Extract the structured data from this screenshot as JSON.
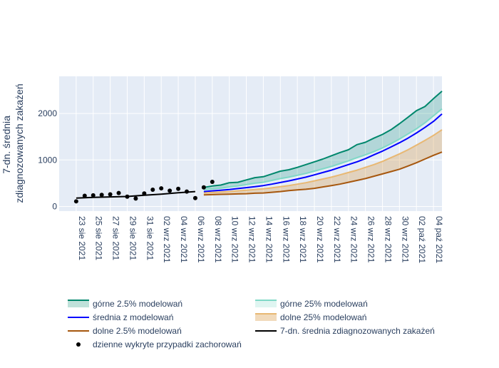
{
  "chart_data": {
    "type": "line",
    "ylabel": "7-dn. średnia zdiagnozowanych zakażeń",
    "ylabel_lines": [
      "7-dn. średnia",
      "zdiagnozowanych zakażeń"
    ],
    "ylim": [
      -100,
      2800
    ],
    "yticks": [
      0,
      1000,
      2000
    ],
    "yticklabels": [
      "0",
      "1000",
      "2000"
    ],
    "xlim": [
      "2021-08-21",
      "2021-10-05"
    ],
    "xtick_dates": [
      "2021-08-23",
      "2021-08-25",
      "2021-08-27",
      "2021-08-29",
      "2021-08-31",
      "2021-09-02",
      "2021-09-04",
      "2021-09-06",
      "2021-09-08",
      "2021-09-10",
      "2021-09-12",
      "2021-09-14",
      "2021-09-16",
      "2021-09-18",
      "2021-09-20",
      "2021-09-22",
      "2021-09-24",
      "2021-09-26",
      "2021-09-28",
      "2021-09-30",
      "2021-10-02",
      "2021-10-04"
    ],
    "xticklabels": [
      "23 sie 2021",
      "25 sie 2021",
      "27 sie 2021",
      "29 sie 2021",
      "31 sie 2021",
      "02 wrz 2021",
      "04 wrz 2021",
      "06 wrz 2021",
      "08 wrz 2021",
      "10 wrz 2021",
      "12 wrz 2021",
      "14 wrz 2021",
      "16 wrz 2021",
      "18 wrz 2021",
      "20 wrz 2021",
      "22 wrz 2021",
      "24 wrz 2021",
      "26 wrz 2021",
      "28 wrz 2021",
      "30 wrz 2021",
      "02 paź 2021",
      "04 paź 2021"
    ],
    "grid": true,
    "legend_position": "bottom",
    "series": [
      {
        "name": "górne 2.5% modelowań",
        "color": "#00876c",
        "x": [
          "2021-09-07",
          "2021-09-08",
          "2021-09-09",
          "2021-09-10",
          "2021-09-11",
          "2021-09-12",
          "2021-09-13",
          "2021-09-14",
          "2021-09-15",
          "2021-09-16",
          "2021-09-17",
          "2021-09-18",
          "2021-09-19",
          "2021-09-20",
          "2021-09-21",
          "2021-09-22",
          "2021-09-23",
          "2021-09-24",
          "2021-09-25",
          "2021-09-26",
          "2021-09-27",
          "2021-09-28",
          "2021-09-29",
          "2021-09-30",
          "2021-10-01",
          "2021-10-02",
          "2021-10-03",
          "2021-10-04",
          "2021-10-05"
        ],
        "values": [
          410,
          440,
          460,
          510,
          520,
          570,
          620,
          640,
          700,
          760,
          790,
          840,
          900,
          960,
          1020,
          1090,
          1160,
          1220,
          1330,
          1380,
          1470,
          1550,
          1650,
          1780,
          1920,
          2060,
          2150,
          2320,
          2480
        ]
      },
      {
        "name": "górne 25% modelowań",
        "color": "#7fd8c6",
        "x": [
          "2021-09-07",
          "2021-09-08",
          "2021-09-09",
          "2021-09-10",
          "2021-09-11",
          "2021-09-12",
          "2021-09-13",
          "2021-09-14",
          "2021-09-15",
          "2021-09-16",
          "2021-09-17",
          "2021-09-18",
          "2021-09-19",
          "2021-09-20",
          "2021-09-21",
          "2021-09-22",
          "2021-09-23",
          "2021-09-24",
          "2021-09-25",
          "2021-09-26",
          "2021-09-27",
          "2021-09-28",
          "2021-09-29",
          "2021-09-30",
          "2021-10-01",
          "2021-10-02",
          "2021-10-03",
          "2021-10-04",
          "2021-10-05"
        ],
        "values": [
          360,
          380,
          395,
          420,
          440,
          470,
          500,
          520,
          560,
          600,
          630,
          670,
          710,
          760,
          810,
          860,
          920,
          980,
          1050,
          1110,
          1180,
          1260,
          1350,
          1450,
          1560,
          1670,
          1800,
          1950,
          2100
        ]
      },
      {
        "name": "średnia z modelowań",
        "color": "#0000ff",
        "x": [
          "2021-09-07",
          "2021-09-08",
          "2021-09-09",
          "2021-09-10",
          "2021-09-11",
          "2021-09-12",
          "2021-09-13",
          "2021-09-14",
          "2021-09-15",
          "2021-09-16",
          "2021-09-17",
          "2021-09-18",
          "2021-09-19",
          "2021-09-20",
          "2021-09-21",
          "2021-09-22",
          "2021-09-23",
          "2021-09-24",
          "2021-09-25",
          "2021-09-26",
          "2021-09-27",
          "2021-09-28",
          "2021-09-29",
          "2021-09-30",
          "2021-10-01",
          "2021-10-02",
          "2021-10-03",
          "2021-10-04",
          "2021-10-05"
        ],
        "values": [
          320,
          335,
          350,
          365,
          385,
          405,
          425,
          450,
          480,
          515,
          550,
          590,
          630,
          680,
          730,
          780,
          840,
          900,
          960,
          1030,
          1110,
          1190,
          1280,
          1370,
          1470,
          1580,
          1700,
          1830,
          1990
        ]
      },
      {
        "name": "dolne 25% modelowań",
        "color": "#e8b873",
        "x": [
          "2021-09-07",
          "2021-09-08",
          "2021-09-09",
          "2021-09-10",
          "2021-09-11",
          "2021-09-12",
          "2021-09-13",
          "2021-09-14",
          "2021-09-15",
          "2021-09-16",
          "2021-09-17",
          "2021-09-18",
          "2021-09-19",
          "2021-09-20",
          "2021-09-21",
          "2021-09-22",
          "2021-09-23",
          "2021-09-24",
          "2021-09-25",
          "2021-09-26",
          "2021-09-27",
          "2021-09-28",
          "2021-09-29",
          "2021-09-30",
          "2021-10-01",
          "2021-10-02",
          "2021-10-03",
          "2021-10-04",
          "2021-10-05"
        ],
        "values": [
          290,
          300,
          310,
          320,
          335,
          350,
          365,
          380,
          400,
          425,
          450,
          480,
          510,
          550,
          590,
          630,
          680,
          730,
          780,
          840,
          900,
          970,
          1050,
          1130,
          1220,
          1320,
          1420,
          1530,
          1650
        ]
      },
      {
        "name": "dolne 2.5% modelowań",
        "color": "#a6570e",
        "x": [
          "2021-09-07",
          "2021-09-08",
          "2021-09-09",
          "2021-09-10",
          "2021-09-11",
          "2021-09-12",
          "2021-09-13",
          "2021-09-14",
          "2021-09-15",
          "2021-09-16",
          "2021-09-17",
          "2021-09-18",
          "2021-09-19",
          "2021-09-20",
          "2021-09-21",
          "2021-09-22",
          "2021-09-23",
          "2021-09-24",
          "2021-09-25",
          "2021-09-26",
          "2021-09-27",
          "2021-09-28",
          "2021-09-29",
          "2021-09-30",
          "2021-10-01",
          "2021-10-02",
          "2021-10-03",
          "2021-10-04",
          "2021-10-05"
        ],
        "values": [
          250,
          255,
          260,
          265,
          270,
          275,
          285,
          290,
          305,
          320,
          340,
          355,
          370,
          390,
          420,
          450,
          480,
          520,
          560,
          600,
          650,
          700,
          750,
          800,
          870,
          940,
          1020,
          1100,
          1170
        ]
      },
      {
        "name": "7-dn. średnia zdiagnozowanych zakażeń",
        "color": "#000000",
        "x": [
          "2021-08-23",
          "2021-08-25",
          "2021-08-27",
          "2021-08-29",
          "2021-08-31",
          "2021-09-02",
          "2021-09-04",
          "2021-09-06"
        ],
        "values": [
          180,
          195,
          205,
          215,
          240,
          265,
          295,
          320
        ]
      }
    ],
    "points": {
      "name": "dzienne wykryte przypadki zachorowań",
      "color": "#000000",
      "x": [
        "2021-08-23",
        "2021-08-24",
        "2021-08-25",
        "2021-08-26",
        "2021-08-27",
        "2021-08-28",
        "2021-08-29",
        "2021-08-30",
        "2021-08-31",
        "2021-09-01",
        "2021-09-02",
        "2021-09-03",
        "2021-09-04",
        "2021-09-05",
        "2021-09-06",
        "2021-09-07",
        "2021-09-08"
      ],
      "values": [
        110,
        230,
        240,
        250,
        260,
        290,
        210,
        170,
        280,
        360,
        390,
        340,
        380,
        320,
        180,
        410,
        530
      ]
    },
    "bands": [
      {
        "upper": "górne 2.5% modelowań",
        "lower": "górne 25% modelowań",
        "color": "rgba(0,135,108,0.22)"
      },
      {
        "upper": "dolne 25% modelowań",
        "lower": "dolne 2.5% modelowań",
        "color": "rgba(214,150,60,0.30)"
      }
    ],
    "legend": [
      {
        "label": "górne 2.5% modelowań",
        "kind": "band",
        "color": "#00876c",
        "fill": "rgba(0,135,108,0.25)"
      },
      {
        "label": "górne 25% modelowań",
        "kind": "band",
        "color": "#7fd8c6",
        "fill": "rgba(127,216,198,0.25)"
      },
      {
        "label": "średnia z modelowań",
        "kind": "line",
        "color": "#0000ff"
      },
      {
        "label": "dolne 25% modelowań",
        "kind": "band",
        "color": "#e8b873",
        "fill": "rgba(214,150,60,0.35)"
      },
      {
        "label": "dolne 2.5% modelowań",
        "kind": "line",
        "color": "#a6570e"
      },
      {
        "label": "7-dn. średnia zdiagnozowanych zakażeń",
        "kind": "line",
        "color": "#000000"
      },
      {
        "label": "dzienne wykryte przypadki zachorowań",
        "kind": "marker",
        "color": "#000000"
      }
    ],
    "colors": {
      "plot_background": "#e5ecf6",
      "grid": "#ffffff",
      "text": "#2a3f5f"
    }
  }
}
